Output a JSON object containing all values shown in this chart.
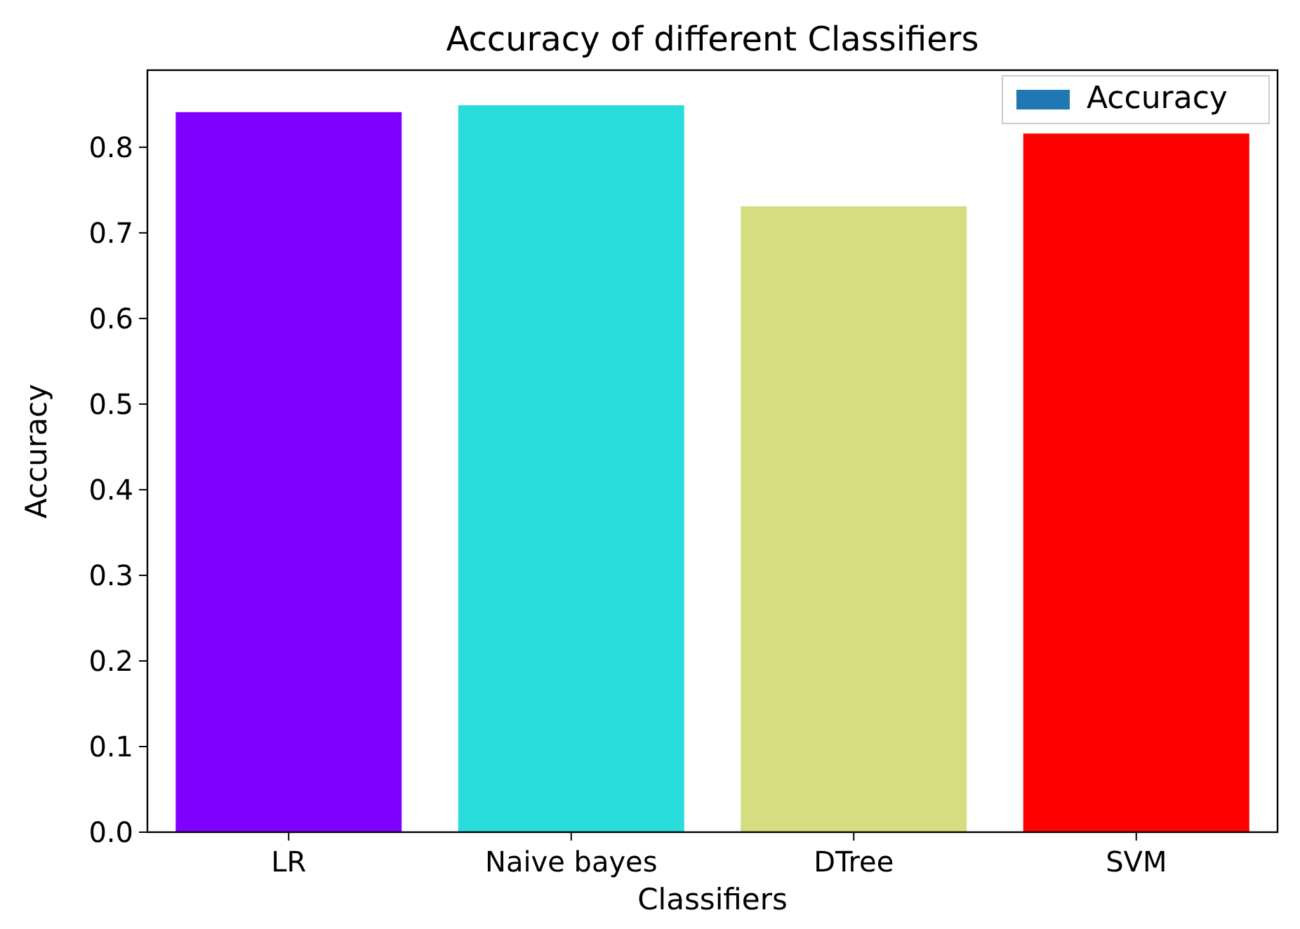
{
  "chart_data": {
    "type": "bar",
    "title": "Accuracy of different Classifiers",
    "xlabel": "Classifiers",
    "ylabel": "Accuracy",
    "categories": [
      "LR",
      "Naive bayes",
      "DTree",
      "SVM"
    ],
    "series": [
      {
        "name": "Accuracy",
        "color": "#1f77b4",
        "colors": [
          "#8000ff",
          "#2adddd",
          "#d4dd80",
          "#ff0000"
        ],
        "values": [
          0.841,
          0.849,
          0.731,
          0.816
        ]
      }
    ],
    "ylim": [
      0,
      0.89
    ],
    "yticks": [
      {
        "value": 0,
        "label": "0.0"
      },
      {
        "value": 0.1,
        "label": "0.1"
      },
      {
        "value": 0.2,
        "label": "0.2"
      },
      {
        "value": 0.3,
        "label": "0.3"
      },
      {
        "value": 0.4,
        "label": "0.4"
      },
      {
        "value": 0.5,
        "label": "0.5"
      },
      {
        "value": 0.6,
        "label": "0.6"
      },
      {
        "value": 0.7,
        "label": "0.7"
      },
      {
        "value": 0.8,
        "label": "0.8"
      }
    ],
    "legend": "top right"
  }
}
